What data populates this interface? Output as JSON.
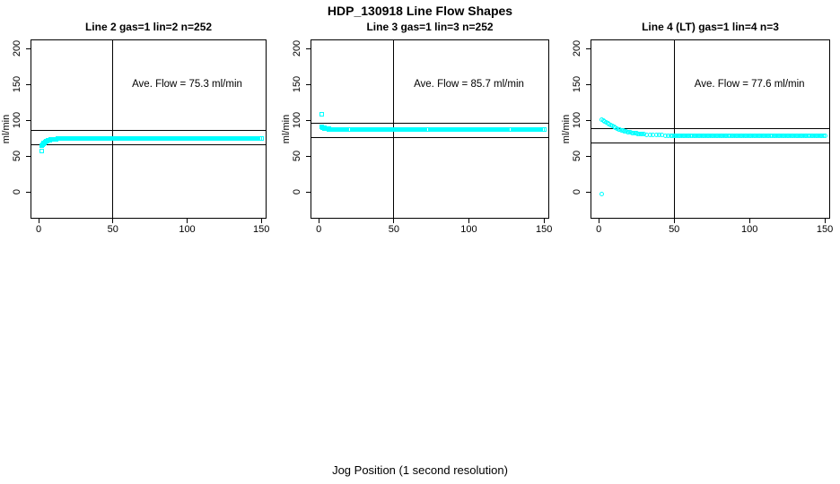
{
  "figure": {
    "title": "HDP_130918  Line Flow Shapes",
    "xlabel": "Jog Position (1 second resolution)",
    "background_color": "#ffffff",
    "accent_color": "#00ffff"
  },
  "chart_data": [
    {
      "type": "scatter",
      "title": "Line 2 gas=1 lin=2 n=252",
      "ylabel": "ml/min",
      "annotation": "Ave. Flow =  75.3  ml/min",
      "avg_flow_ml_min": 75.3,
      "n": 252,
      "marker": "open-square",
      "marker_color": "#00ffff",
      "x_ticks": [
        0,
        50,
        100,
        150
      ],
      "y_ticks": [
        0,
        50,
        100,
        150,
        200
      ],
      "x_axis_range": [
        -5.5,
        153.5
      ],
      "y_axis_range": [
        -37.5,
        212.5
      ],
      "ref_hlines": [
        85.3,
        65.3
      ],
      "ref_vline": 50,
      "annotation_pos": [
        100,
        150
      ],
      "outlier_points": [
        [
          2,
          57
        ]
      ],
      "points_head": [
        [
          2,
          64
        ],
        [
          2.5,
          65.3
        ],
        [
          3,
          66.5
        ],
        [
          3.5,
          67.6
        ],
        [
          4,
          68.6
        ],
        [
          4.5,
          69.4
        ],
        [
          5,
          70.1
        ],
        [
          5.5,
          70.7
        ],
        [
          6,
          71.3
        ],
        [
          6.5,
          71.7
        ],
        [
          7,
          72.1
        ],
        [
          7.5,
          72.4
        ],
        [
          8,
          72.7
        ],
        [
          8.5,
          72.9
        ],
        [
          9,
          73.1
        ],
        [
          9.5,
          73.3
        ],
        [
          10,
          73.4
        ],
        [
          11,
          73.6
        ],
        [
          12,
          73.7
        ],
        [
          13,
          73.8
        ],
        [
          14,
          73.8
        ],
        [
          15,
          73.9
        ],
        [
          16,
          73.9
        ],
        [
          17,
          74
        ],
        [
          18,
          74
        ]
      ],
      "points_tail": {
        "x_from": 19,
        "x_to": 150,
        "x_step": 1,
        "y": 74
      }
    },
    {
      "type": "scatter",
      "title": "Line 3 gas=1 lin=3 n=252",
      "ylabel": "ml/min",
      "annotation": "Ave. Flow =  85.7  ml/min",
      "avg_flow_ml_min": 85.7,
      "n": 252,
      "marker": "open-square",
      "marker_color": "#00ffff",
      "x_ticks": [
        0,
        50,
        100,
        150
      ],
      "y_ticks": [
        0,
        50,
        100,
        150,
        200
      ],
      "x_axis_range": [
        -5.5,
        153.5
      ],
      "y_axis_range": [
        -37.5,
        212.5
      ],
      "ref_hlines": [
        95.7,
        75.7
      ],
      "ref_vline": 50,
      "annotation_pos": [
        100,
        150
      ],
      "outlier_points": [
        [
          2,
          108
        ]
      ],
      "points_head": [
        [
          2,
          90.5
        ],
        [
          2.5,
          89.9
        ],
        [
          3,
          89.4
        ],
        [
          3.5,
          89
        ],
        [
          4,
          88.6
        ],
        [
          4.5,
          88.3
        ],
        [
          5,
          88.1
        ],
        [
          5.5,
          87.9
        ],
        [
          6,
          87.7
        ],
        [
          6.5,
          87.6
        ],
        [
          7,
          87.4
        ],
        [
          7.5,
          87.3
        ],
        [
          8,
          87.2
        ],
        [
          9,
          87.1
        ],
        [
          10,
          87
        ],
        [
          11,
          86.9
        ],
        [
          12,
          86.9
        ],
        [
          13,
          86.8
        ],
        [
          14,
          86.8
        ],
        [
          15,
          86.7
        ],
        [
          16,
          86.7
        ],
        [
          17,
          86.7
        ],
        [
          18,
          86.6
        ]
      ],
      "points_tail": {
        "x_from": 19,
        "x_to": 150,
        "x_step": 1,
        "y": 86.6
      }
    },
    {
      "type": "scatter",
      "title": "Line 4 (LT) gas=1 lin=4 n=3",
      "ylabel": "ml/min",
      "annotation": "Ave. Flow =  77.6  ml/min",
      "avg_flow_ml_min": 77.6,
      "n": 3,
      "marker": "open-circle",
      "marker_color": "#00ffff",
      "x_ticks": [
        0,
        50,
        100,
        150
      ],
      "y_ticks": [
        0,
        50,
        100,
        150,
        200
      ],
      "x_axis_range": [
        -5.5,
        153.5
      ],
      "y_axis_range": [
        -37.5,
        212.5
      ],
      "ref_hlines": [
        87.6,
        67.6
      ],
      "ref_vline": 50,
      "annotation_pos": [
        100,
        150
      ],
      "outlier_points": [
        [
          2,
          -3
        ]
      ],
      "points_head": [
        [
          2,
          101
        ],
        [
          3,
          99.8
        ],
        [
          4,
          98.3
        ],
        [
          5,
          96.8
        ],
        [
          6,
          95.3
        ],
        [
          7,
          93.9
        ],
        [
          8,
          92.6
        ],
        [
          9,
          91.4
        ],
        [
          10,
          90.3
        ],
        [
          11,
          89.3
        ],
        [
          12,
          88.4
        ],
        [
          13,
          87.5
        ],
        [
          14,
          86.7
        ],
        [
          15,
          86
        ],
        [
          16,
          85.3
        ],
        [
          17,
          84.7
        ],
        [
          18,
          84.1
        ],
        [
          19,
          83.6
        ],
        [
          20,
          83.1
        ],
        [
          21,
          82.7
        ],
        [
          22,
          82.3
        ],
        [
          23,
          81.9
        ],
        [
          24,
          81.6
        ],
        [
          25,
          81.3
        ],
        [
          26,
          81
        ],
        [
          27,
          80.7
        ],
        [
          28,
          80.5
        ],
        [
          29,
          80.3
        ],
        [
          30,
          80.1
        ],
        [
          32,
          79.8
        ],
        [
          34,
          79.5
        ],
        [
          36,
          79.3
        ],
        [
          38,
          79.1
        ],
        [
          40,
          78.9
        ],
        [
          42,
          78.8
        ],
        [
          44,
          78.7
        ],
        [
          46,
          78.6
        ],
        [
          48,
          78.5
        ]
      ],
      "points_tail": {
        "x_from": 49,
        "x_to": 150,
        "x_step": 1,
        "y": 78.4
      }
    }
  ]
}
